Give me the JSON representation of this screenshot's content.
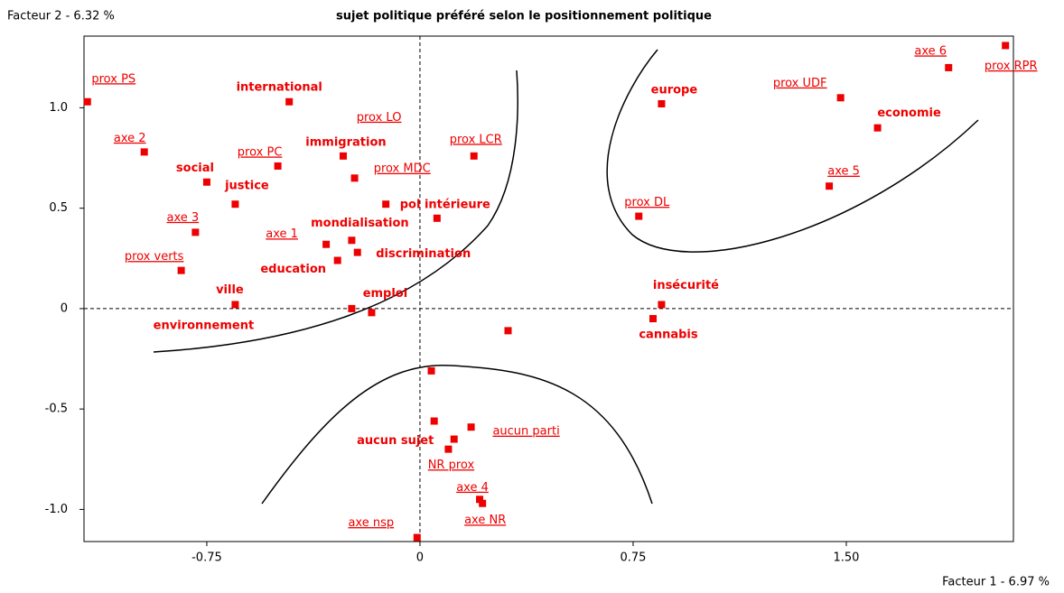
{
  "chart_data": {
    "type": "scatter",
    "title": "sujet politique préféré selon le positionnement politique",
    "y_label": "Facteur 2  -  6.32 %",
    "x_label": "Facteur 1  -  6.97 %",
    "xlim": [
      -1.182,
      2.088
    ],
    "ylim": [
      -1.16,
      1.357
    ],
    "xticks": [
      -0.75,
      0,
      0.75,
      {
        "value": 1.5,
        "label": "1.50"
      }
    ],
    "yticks": [
      {
        "value": 1,
        "label": "1.0"
      },
      0.5,
      0,
      -0.5,
      {
        "value": -1,
        "label": "-1.0"
      }
    ],
    "series": [
      {
        "color": "#ee0000",
        "style": "bold",
        "labels": [
          "international",
          "social",
          "justice",
          "immigration",
          "pol intérieure",
          "mondialisation",
          "education",
          "discrimination",
          "ville",
          "environnement",
          "emploi",
          "europe",
          "economie",
          "insécurité",
          "cannabis",
          "aucun sujet",
          null,
          null,
          null
        ],
        "x": [
          -0.46,
          -0.75,
          -0.65,
          -0.27,
          0.06,
          -0.24,
          -0.29,
          -0.22,
          -0.65,
          -0.24,
          -0.17,
          0.85,
          1.61,
          0.85,
          0.82,
          0.12,
          0.31,
          0.04,
          0.05
        ],
        "values": [
          1.03,
          0.63,
          0.52,
          0.76,
          0.45,
          0.34,
          0.24,
          0.28,
          0.02,
          0.0,
          -0.02,
          1.02,
          0.9,
          0.02,
          -0.05,
          -0.65,
          -0.11,
          -0.31,
          -0.56
        ]
      },
      {
        "color": "#ee0000",
        "style": "underline",
        "labels": [
          "prox PS",
          "axe 2",
          "prox PC",
          "prox LO",
          "prox MDC",
          "prox LCR",
          "axe 3",
          "prox verts",
          "axe 1",
          "prox UDF",
          "axe 6",
          "prox RPR",
          "axe 5",
          "prox DL",
          "aucun parti",
          "NR prox",
          "axe 4",
          "axe NR",
          "axe nsp"
        ],
        "x": [
          -1.17,
          -0.97,
          -0.5,
          -0.23,
          -0.12,
          0.19,
          -0.79,
          -0.84,
          -0.33,
          1.48,
          1.86,
          2.06,
          1.44,
          0.77,
          0.18,
          0.1,
          0.21,
          0.22,
          -0.01
        ],
        "values": [
          1.03,
          0.78,
          0.71,
          0.65,
          0.52,
          0.76,
          0.38,
          0.19,
          0.32,
          1.05,
          1.2,
          1.31,
          0.61,
          0.46,
          -0.59,
          -0.7,
          -0.95,
          -0.97,
          -1.14
        ]
      }
    ]
  }
}
